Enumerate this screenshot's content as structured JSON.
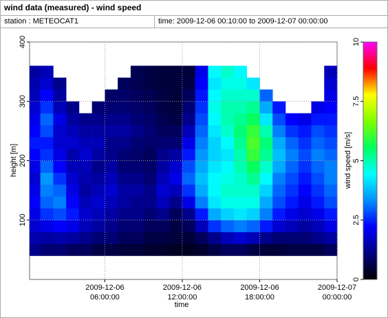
{
  "chart_data": {
    "type": "heatmap",
    "title": "wind data (measured) - wind speed",
    "station": "station : METEOCAT1",
    "time_range": "time: 2009-12-06 00:10:00 to 2009-12-07 00:00:00",
    "x_label": "time",
    "y_label": "height [m]",
    "colorbar_label": "wind speed [m/s]",
    "xlim": [
      "2009-12-06 00:10:00",
      "2009-12-07 00:00:00"
    ],
    "xticks": [
      "2009-12-06 06:00:00",
      "2009-12-06 12:00:00",
      "2009-12-06 18:00:00",
      "2009-12-07 00:00:00"
    ],
    "ylim": [
      0,
      400
    ],
    "yticks": [
      100,
      200,
      300,
      400
    ],
    "clim": [
      0,
      10
    ],
    "cticks": [
      0,
      2.5,
      5,
      7.5,
      10
    ],
    "colormap": [
      "#000000",
      "#000080",
      "#0000ff",
      "#0090ff",
      "#00ffff",
      "#00ff60",
      "#80ff00",
      "#ffff00",
      "#ff0000",
      "#ff00ff"
    ],
    "grid": true,
    "x_edges": [
      "2009-12-06 00:10:00",
      "2009-12-06 01:00:00",
      "2009-12-06 02:00:00",
      "2009-12-06 03:00:00",
      "2009-12-06 04:00:00",
      "2009-12-06 05:00:00",
      "2009-12-06 06:00:00",
      "2009-12-06 07:00:00",
      "2009-12-06 08:00:00",
      "2009-12-06 09:00:00",
      "2009-12-06 10:00:00",
      "2009-12-06 11:00:00",
      "2009-12-06 12:00:00",
      "2009-12-06 13:00:00",
      "2009-12-06 14:00:00",
      "2009-12-06 15:00:00",
      "2009-12-06 16:00:00",
      "2009-12-06 17:00:00",
      "2009-12-06 18:00:00",
      "2009-12-06 19:00:00",
      "2009-12-06 20:00:00",
      "2009-12-06 21:00:00",
      "2009-12-06 22:00:00",
      "2009-12-06 23:00:00",
      "2009-12-07 00:00:00"
    ],
    "y_edges": [
      40,
      60,
      80,
      100,
      120,
      140,
      160,
      180,
      200,
      220,
      240,
      260,
      280,
      300,
      320,
      340,
      360
    ],
    "values": [
      [
        1.2,
        1.5,
        1.8,
        2.0,
        2.2,
        2.0,
        1.8,
        2.0,
        2.2,
        2.4,
        2.2,
        2.0,
        1.8,
        1.6,
        1.5,
        1.4
      ],
      [
        1.0,
        1.4,
        2.0,
        2.6,
        3.0,
        3.2,
        3.4,
        3.0,
        2.6,
        2.4,
        2.8,
        3.0,
        2.6,
        2.2,
        1.8,
        1.6
      ],
      [
        1.0,
        1.5,
        2.2,
        2.8,
        3.2,
        3.0,
        2.6,
        2.2,
        2.0,
        1.8,
        1.8,
        2.0,
        1.6,
        1.4,
        1.2,
        null
      ],
      [
        0.8,
        1.4,
        2.0,
        2.4,
        2.2,
        2.0,
        1.8,
        1.6,
        1.5,
        1.8,
        1.6,
        1.4,
        1.2,
        null,
        null,
        null
      ],
      [
        0.8,
        1.2,
        1.6,
        1.8,
        1.6,
        1.4,
        1.5,
        1.6,
        1.8,
        1.6,
        1.4,
        1.2,
        null,
        null,
        null,
        null
      ],
      [
        0.6,
        1.0,
        1.4,
        1.6,
        1.8,
        1.6,
        1.4,
        1.2,
        1.4,
        1.6,
        1.4,
        1.2,
        1.0,
        null,
        null,
        null
      ],
      [
        0.6,
        1.0,
        1.2,
        1.4,
        1.6,
        1.8,
        1.6,
        1.4,
        1.2,
        1.2,
        1.4,
        1.2,
        1.0,
        0.9,
        null,
        null
      ],
      [
        0.5,
        0.8,
        1.0,
        1.2,
        1.4,
        1.4,
        1.2,
        1.0,
        1.0,
        1.2,
        1.4,
        1.2,
        1.0,
        0.9,
        0.8,
        null
      ],
      [
        0.5,
        0.8,
        1.0,
        1.2,
        1.2,
        1.4,
        1.2,
        1.0,
        0.9,
        1.0,
        1.2,
        1.0,
        0.9,
        0.8,
        0.7,
        0.7
      ],
      [
        0.4,
        0.6,
        0.8,
        1.0,
        1.2,
        1.2,
        1.0,
        0.9,
        0.8,
        0.9,
        1.0,
        0.9,
        0.8,
        0.7,
        0.6,
        0.6
      ],
      [
        0.4,
        0.6,
        0.8,
        1.2,
        1.6,
        1.8,
        1.6,
        1.4,
        1.2,
        1.0,
        0.8,
        0.7,
        0.6,
        0.6,
        0.5,
        0.5
      ],
      [
        0.3,
        0.5,
        0.6,
        0.8,
        1.2,
        1.6,
        2.0,
        1.8,
        1.4,
        1.0,
        0.8,
        0.6,
        0.5,
        0.5,
        0.5,
        0.5
      ],
      [
        0.3,
        0.5,
        0.8,
        1.2,
        2.0,
        2.6,
        3.0,
        2.8,
        2.4,
        2.0,
        1.6,
        1.2,
        1.0,
        0.8,
        0.6,
        0.5
      ],
      [
        0.4,
        0.8,
        1.6,
        2.4,
        3.2,
        3.6,
        3.8,
        3.6,
        3.4,
        3.2,
        3.0,
        2.8,
        2.6,
        2.4,
        2.2,
        2.0
      ],
      [
        0.6,
        1.2,
        2.6,
        3.6,
        4.2,
        4.4,
        4.4,
        4.2,
        4.0,
        4.0,
        4.2,
        4.4,
        4.6,
        4.4,
        4.2,
        4.4
      ],
      [
        0.8,
        1.6,
        3.0,
        4.0,
        4.6,
        4.8,
        4.6,
        4.4,
        4.2,
        4.4,
        4.8,
        5.0,
        5.0,
        4.8,
        4.6,
        4.8
      ],
      [
        0.8,
        1.8,
        3.2,
        4.2,
        4.6,
        4.8,
        4.8,
        5.0,
        5.0,
        5.2,
        5.4,
        5.2,
        5.0,
        4.8,
        4.6,
        4.4
      ],
      [
        0.6,
        1.6,
        3.0,
        4.0,
        4.6,
        4.8,
        5.2,
        5.6,
        6.0,
        6.2,
        6.0,
        5.6,
        5.2,
        4.8,
        4.2,
        null
      ],
      [
        0.5,
        1.2,
        2.4,
        3.2,
        3.6,
        4.0,
        4.4,
        4.8,
        5.2,
        5.4,
        5.0,
        4.2,
        3.6,
        3.0,
        null,
        null
      ],
      [
        0.5,
        1.0,
        1.8,
        2.4,
        2.8,
        3.0,
        3.2,
        3.6,
        3.8,
        3.6,
        3.2,
        2.8,
        2.4,
        null,
        null,
        null
      ],
      [
        0.6,
        1.0,
        1.6,
        2.0,
        2.4,
        2.6,
        2.8,
        3.0,
        3.2,
        3.0,
        2.6,
        2.2,
        null,
        null,
        null,
        null
      ],
      [
        0.6,
        1.0,
        1.4,
        1.8,
        2.0,
        2.2,
        2.4,
        2.6,
        2.8,
        2.6,
        2.4,
        2.0,
        null,
        null,
        null,
        null
      ],
      [
        0.6,
        1.2,
        1.6,
        2.0,
        2.4,
        2.6,
        2.8,
        3.0,
        3.2,
        3.0,
        2.8,
        2.4,
        2.0,
        null,
        null,
        null
      ],
      [
        0.8,
        1.4,
        2.0,
        2.4,
        2.8,
        3.0,
        3.2,
        3.2,
        3.0,
        2.8,
        2.6,
        2.4,
        2.2,
        2.0,
        1.8,
        1.6
      ]
    ]
  }
}
